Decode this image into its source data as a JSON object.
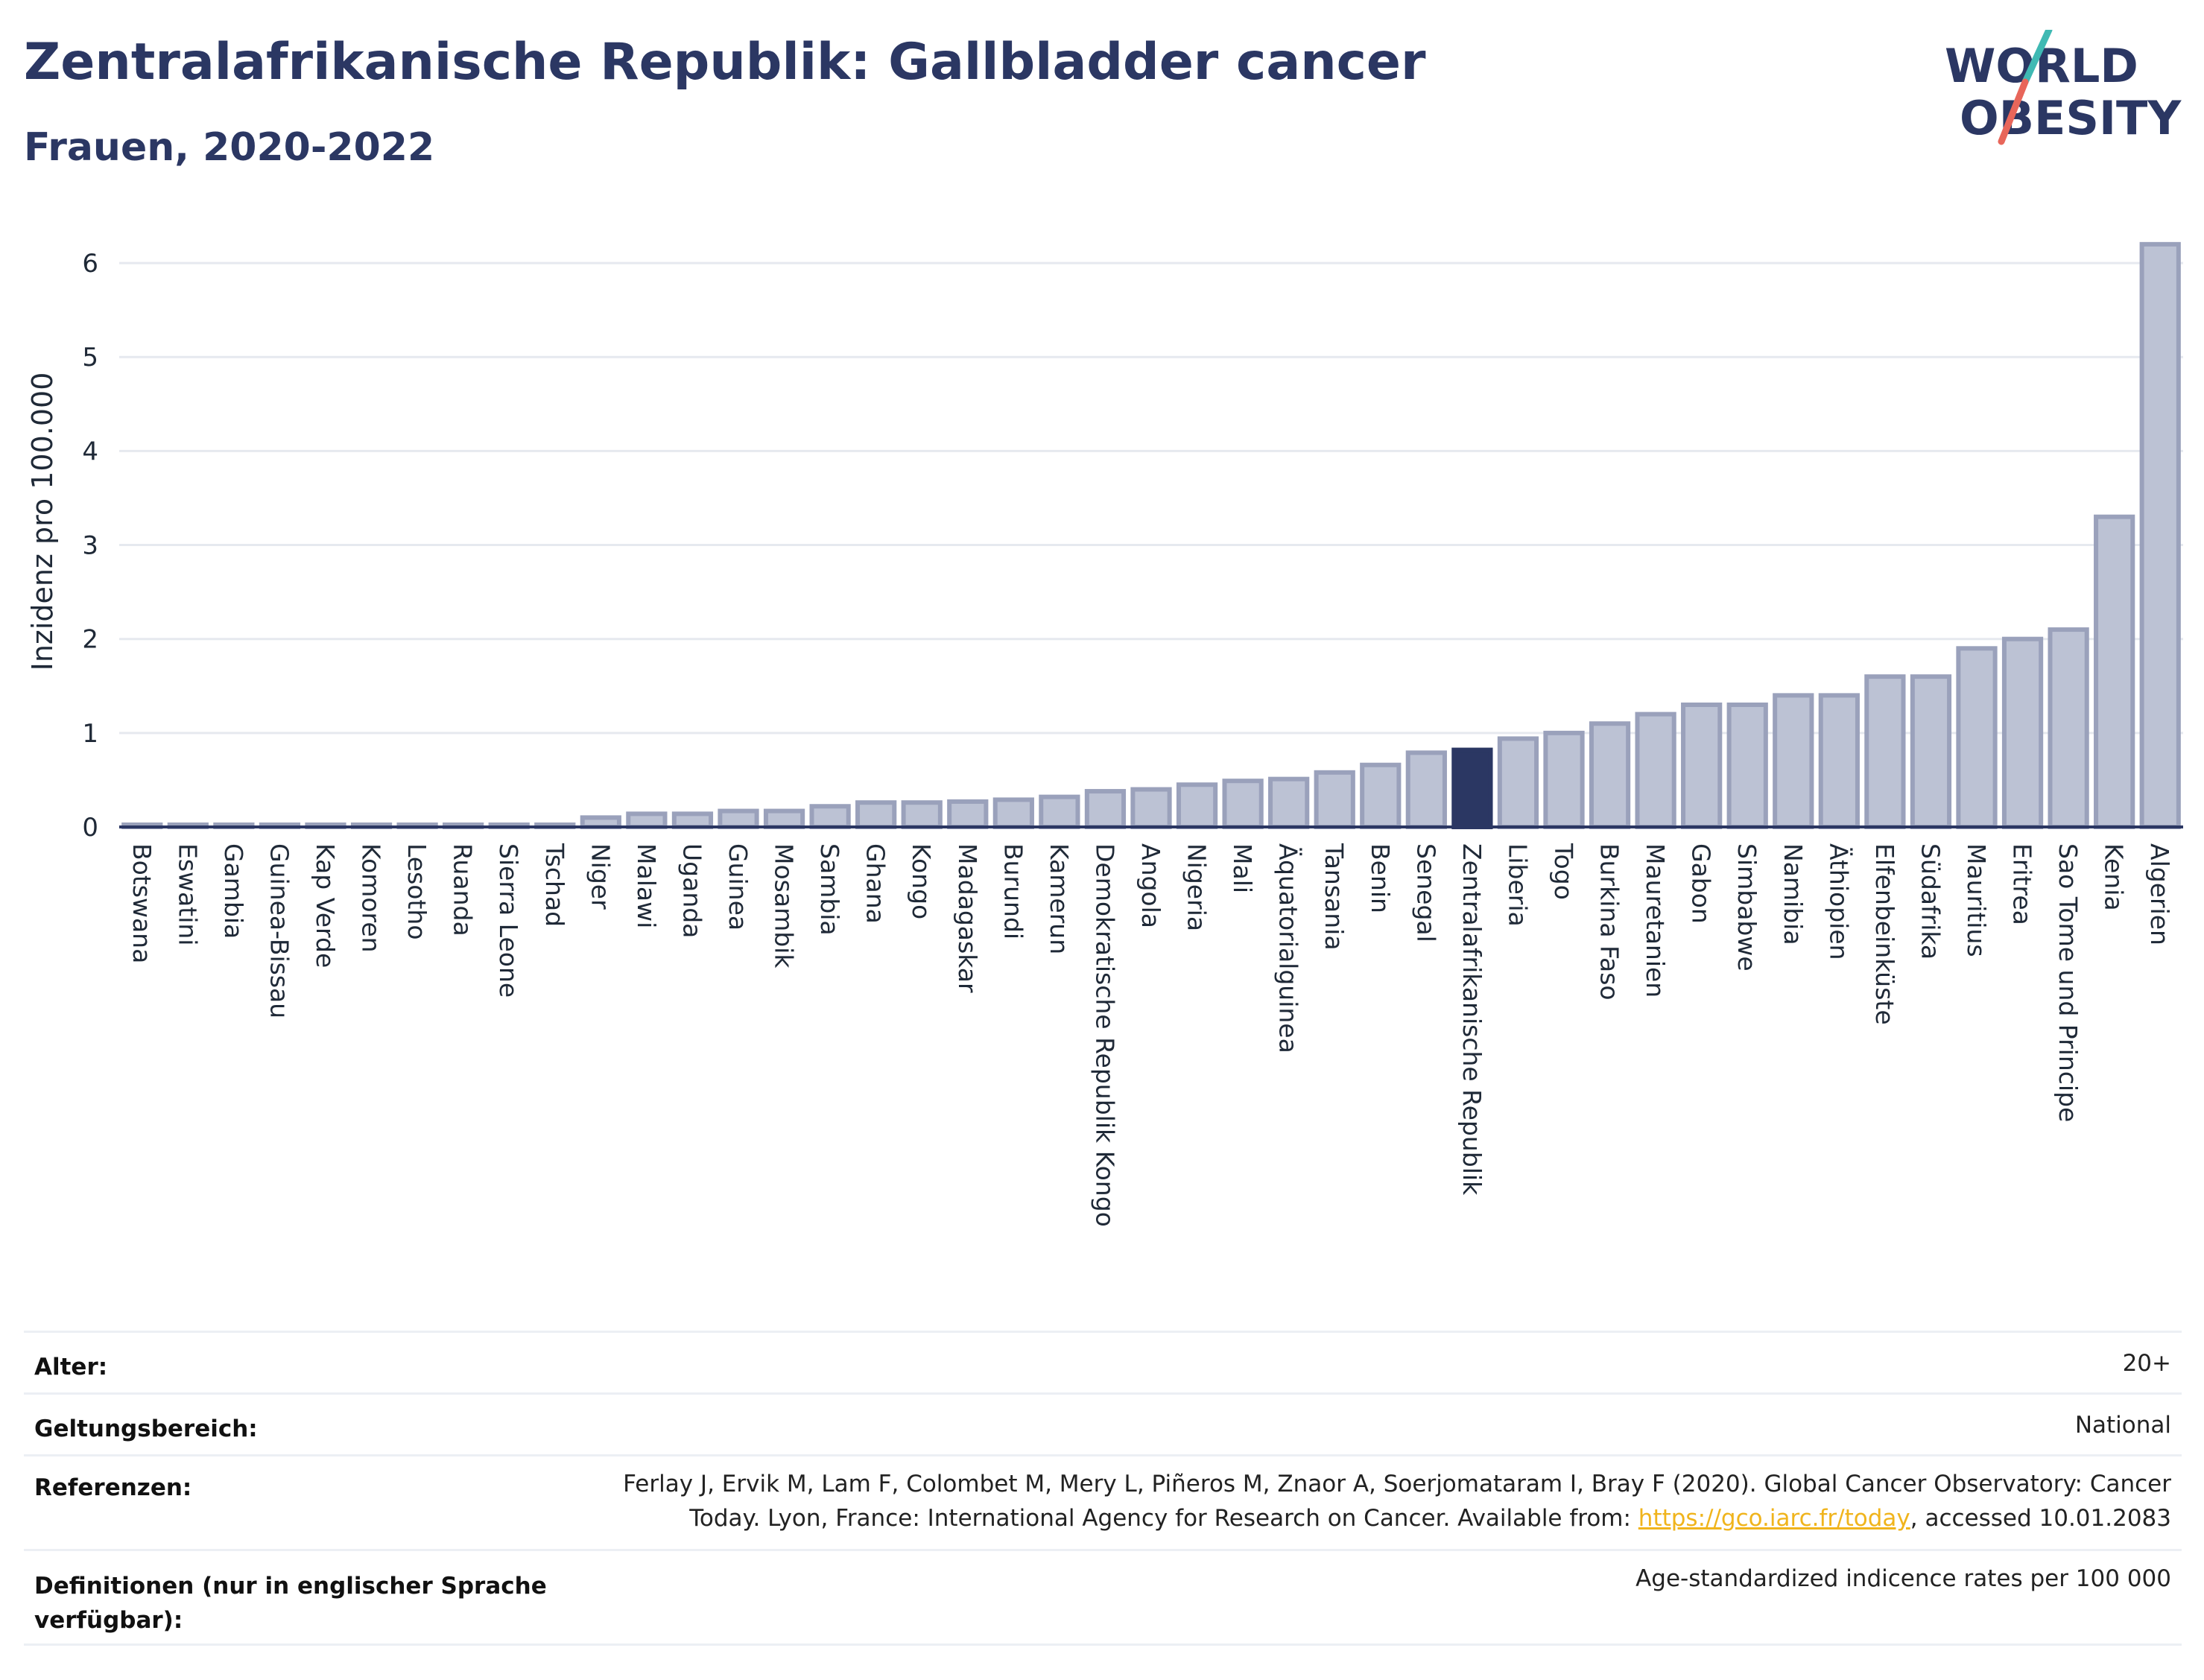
{
  "header": {
    "title": "Zentralafrikanische Republik: Gallbladder cancer",
    "subtitle": "Frauen, 2020-2022"
  },
  "logo": {
    "line1": "WORLD",
    "line2": "OBESITY",
    "colors": {
      "text": "#2b3763",
      "slash_teal": "#3fb9b3",
      "slash_coral": "#e8665a"
    }
  },
  "colors": {
    "bar": "#bcc2d4",
    "bar_stroke": "#9aa1bb",
    "bar_highlight": "#2b3763",
    "grid": "#e6e9ef",
    "axis": "#2b3763"
  },
  "chart_data": {
    "type": "bar",
    "title": "Zentralafrikanische Republik: Gallbladder cancer",
    "subtitle": "Frauen, 2020-2022",
    "ylabel": "Inzidenz pro 100.000",
    "xlabel": "",
    "ylim": [
      0,
      6.5
    ],
    "yticks": [
      0,
      1,
      2,
      3,
      4,
      5,
      6
    ],
    "grid": true,
    "highlight": "Zentralafrikanische Republik",
    "categories": [
      "Botswana",
      "Eswatini",
      "Gambia",
      "Guinea-Bissau",
      "Kap Verde",
      "Komoren",
      "Lesotho",
      "Ruanda",
      "Sierra Leone",
      "Tschad",
      "Niger",
      "Malawi",
      "Uganda",
      "Guinea",
      "Mosambik",
      "Sambia",
      "Ghana",
      "Kongo",
      "Madagaskar",
      "Burundi",
      "Kamerun",
      "Demokratische Republik Kongo",
      "Angola",
      "Nigeria",
      "Mali",
      "Äquatorialguinea",
      "Tansania",
      "Benin",
      "Senegal",
      "Zentralafrikanische Republik",
      "Liberia",
      "Togo",
      "Burkina Faso",
      "Mauretanien",
      "Gabon",
      "Simbabwe",
      "Namibia",
      "Äthiopien",
      "Elfenbeinküste",
      "Südafrika",
      "Mauritius",
      "Eritrea",
      "Sao Tome und Principe",
      "Kenia",
      "Algerien"
    ],
    "values": [
      0.0,
      0.0,
      0.0,
      0.0,
      0.0,
      0.0,
      0.0,
      0.0,
      0.0,
      0.0,
      0.1,
      0.14,
      0.14,
      0.17,
      0.17,
      0.22,
      0.26,
      0.26,
      0.27,
      0.29,
      0.32,
      0.38,
      0.4,
      0.45,
      0.49,
      0.51,
      0.58,
      0.66,
      0.79,
      0.82,
      0.94,
      1.0,
      1.1,
      1.2,
      1.3,
      1.3,
      1.4,
      1.4,
      1.6,
      1.6,
      1.9,
      2.0,
      2.1,
      3.3,
      6.2
    ]
  },
  "meta": {
    "age_label": "Alter:",
    "age_value": "20+",
    "scope_label": "Geltungsbereich:",
    "scope_value": "National",
    "ref_label": "Referenzen:",
    "ref_text_1": "Ferlay J, Ervik M, Lam F, Colombet M, Mery L, Piñeros M, Znaor A, Soerjomataram I, Bray F (2020). Global Cancer Observatory: Cancer",
    "ref_text_2a": "Today. Lyon, France: International Agency for Research on Cancer. Available from: ",
    "ref_link": "https://gco.iarc.fr/today",
    "ref_text_2b": ", accessed 10.01.2083",
    "def_label_1": "Definitionen (nur in englischer Sprache",
    "def_label_2": "verfügbar):",
    "def_value": "Age-standardized indicence rates per 100 000"
  }
}
